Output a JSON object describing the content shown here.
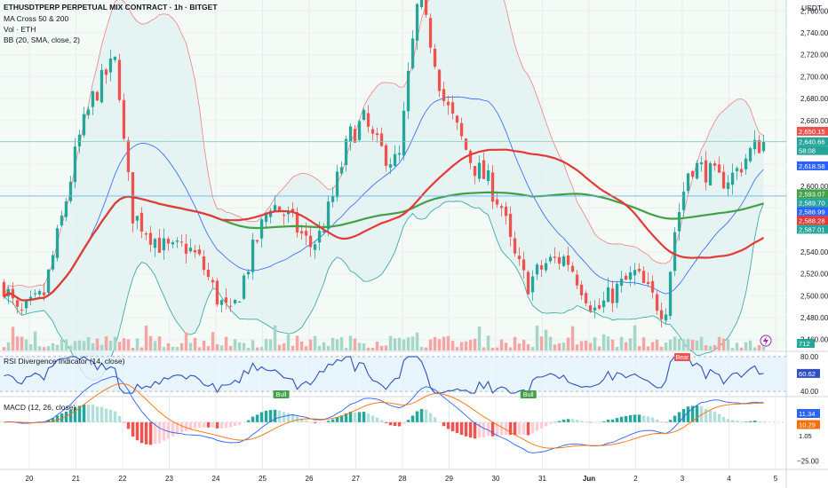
{
  "header": {
    "title": "ETHUSDTPERP PERPETUAL MIX CONTRACT · 1h · BITGET",
    "indicators": [
      "MA Cross 50 & 200",
      "Vol · ETH",
      "BB (20, SMA, close, 2)"
    ],
    "currency": "USDT"
  },
  "colors": {
    "up": "#26a69a",
    "down": "#ef5350",
    "ma50": "#e53935",
    "ma200": "#43a047",
    "bb_basis": "#2962ff",
    "bb_band": "#f08080",
    "bb_fill": "#e0f2f1",
    "rsi": "#2e4fbf",
    "macd": "#2962ff",
    "signal": "#ff6d00"
  },
  "chart_data": [
    {
      "type": "candlestick",
      "pane": "price",
      "x_labels": [
        "20",
        "21",
        "22",
        "23",
        "24",
        "25",
        "26",
        "27",
        "28",
        "29",
        "30",
        "31",
        "Jun",
        "2",
        "3",
        "4",
        "5"
      ],
      "ylim": [
        2450,
        2770
      ],
      "y_ticks": [
        2460,
        2480,
        2500,
        2520,
        2540,
        2560,
        2580,
        2600,
        2620,
        2640,
        2660,
        2680,
        2700,
        2720,
        2740,
        2760
      ],
      "price_path": [
        [
          0,
          2510
        ],
        [
          1.5,
          2480
        ],
        [
          4,
          2500
        ],
        [
          6,
          2575
        ],
        [
          7.5,
          2640
        ],
        [
          9,
          2680
        ],
        [
          10.5,
          2705
        ],
        [
          11.5,
          2715
        ],
        [
          12,
          2650
        ],
        [
          13,
          2575
        ],
        [
          14.5,
          2560
        ],
        [
          16,
          2545
        ],
        [
          17,
          2540
        ],
        [
          18.5,
          2545
        ],
        [
          20,
          2530
        ],
        [
          21.5,
          2500
        ],
        [
          23,
          2480
        ],
        [
          25,
          2535
        ],
        [
          27,
          2585
        ],
        [
          29,
          2570
        ],
        [
          31,
          2545
        ],
        [
          32,
          2555
        ],
        [
          33,
          2580
        ],
        [
          35,
          2645
        ],
        [
          36.5,
          2660
        ],
        [
          37.5,
          2640
        ],
        [
          38.5,
          2630
        ],
        [
          40,
          2620
        ],
        [
          41,
          2700
        ],
        [
          42,
          2770
        ],
        [
          43.5,
          2725
        ],
        [
          44.5,
          2680
        ],
        [
          46,
          2650
        ],
        [
          47.5,
          2620
        ],
        [
          49,
          2605
        ],
        [
          50.5,
          2580
        ],
        [
          51.5,
          2540
        ],
        [
          53,
          2510
        ],
        [
          55,
          2530
        ],
        [
          57,
          2535
        ],
        [
          58.5,
          2510
        ],
        [
          60,
          2485
        ],
        [
          62,
          2505
        ],
        [
          64,
          2520
        ],
        [
          65.5,
          2500
        ],
        [
          67,
          2485
        ],
        [
          68,
          2560
        ],
        [
          69.5,
          2620
        ],
        [
          71,
          2615
        ],
        [
          72.5,
          2605
        ],
        [
          74,
          2610
        ],
        [
          75.5,
          2630
        ],
        [
          77,
          2642
        ]
      ],
      "last_price": 2640.66,
      "countdown": "58:08",
      "price_labels": [
        {
          "value": 2650.15,
          "text": "2,650.15",
          "color": "#ef5350"
        },
        {
          "value": 2640.66,
          "text": "2,640.66",
          "color": "#26a69a"
        },
        {
          "value": 2618.58,
          "text": "2,618.58",
          "color": "#2962ff"
        },
        {
          "value": 2593.07,
          "text": "2,593.07",
          "color": "#43a047"
        },
        {
          "value": 2589.7,
          "text": "2,589.70",
          "color": "#26a69a"
        },
        {
          "value": 2588.99,
          "text": "2,588.99",
          "color": "#2962ff"
        },
        {
          "value": 2588.28,
          "text": "2,588.28",
          "color": "#e53935"
        },
        {
          "value": 2587.01,
          "text": "2,587.01",
          "color": "#26a69a"
        }
      ]
    },
    {
      "type": "bar",
      "pane": "volume",
      "last_volume": "712"
    },
    {
      "type": "line",
      "pane": "rsi",
      "title": "RSI Divergence Indicator (14, close)",
      "ylim": [
        35,
        85
      ],
      "y_ticks": [
        40,
        80
      ],
      "upper_band": 70,
      "lower_band": 30,
      "last_value": "60.62",
      "labels": [
        {
          "text": "Bull",
          "x_day": 25.4
        },
        {
          "text": "Bull",
          "x_day": 30.7
        },
        {
          "text": "Bear",
          "x_day": 34.0
        }
      ]
    },
    {
      "type": "line",
      "pane": "macd",
      "title": "MACD (12, 26, close)",
      "ylim": [
        -30,
        16
      ],
      "y_ticks": [
        -25
      ],
      "value_labels": [
        {
          "text": "11.34",
          "color": "#2962ff"
        },
        {
          "text": "10.29",
          "color": "#ff6d00"
        },
        {
          "text": "1.05",
          "color": "#26a69a"
        }
      ]
    }
  ]
}
